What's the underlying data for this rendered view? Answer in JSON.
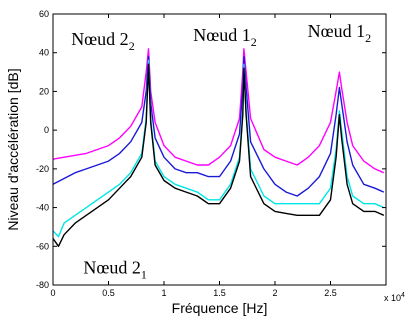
{
  "chart_data": {
    "type": "line",
    "xlabel": "Fréquence [Hz]",
    "ylabel": "Niveau d'accélération [dB]",
    "x_multiplier": "x 10",
    "x_multiplier_exp": "4",
    "xlim": [
      0,
      3
    ],
    "ylim": [
      -80,
      60
    ],
    "x_ticks": [
      "0",
      "0.5",
      "1",
      "1.5",
      "2",
      "2.5"
    ],
    "x_tick_values": [
      0,
      0.5,
      1,
      1.5,
      2,
      2.5
    ],
    "y_ticks": [
      "-80",
      "-60",
      "-40",
      "-20",
      "0",
      "20",
      "40",
      "60"
    ],
    "y_tick_values": [
      -80,
      -60,
      -40,
      -20,
      0,
      20,
      40,
      60
    ],
    "grid": false,
    "series": [
      {
        "color": "#ff00ff",
        "x": [
          0,
          0.1,
          0.2,
          0.3,
          0.4,
          0.5,
          0.6,
          0.7,
          0.8,
          0.84,
          0.86,
          0.88,
          0.92,
          1.0,
          1.1,
          1.2,
          1.3,
          1.4,
          1.5,
          1.6,
          1.68,
          1.71,
          1.72,
          1.74,
          1.78,
          1.9,
          2.0,
          2.1,
          2.2,
          2.3,
          2.4,
          2.5,
          2.55,
          2.58,
          2.6,
          2.65,
          2.7,
          2.8,
          2.9,
          2.98
        ],
        "y": [
          -15,
          -14,
          -13,
          -12,
          -10,
          -8,
          -4,
          2,
          12,
          30,
          42,
          20,
          4,
          -8,
          -14,
          -16,
          -18,
          -18,
          -14,
          -8,
          6,
          30,
          42,
          30,
          6,
          -10,
          -14,
          -16,
          -18,
          -14,
          -8,
          4,
          20,
          30,
          22,
          4,
          -8,
          -16,
          -20,
          -22
        ]
      },
      {
        "color": "#1a1ad6",
        "x": [
          0,
          0.1,
          0.2,
          0.3,
          0.4,
          0.5,
          0.6,
          0.7,
          0.8,
          0.84,
          0.86,
          0.88,
          0.92,
          1.0,
          1.1,
          1.2,
          1.3,
          1.4,
          1.5,
          1.6,
          1.68,
          1.71,
          1.72,
          1.74,
          1.78,
          1.9,
          2.0,
          2.1,
          2.2,
          2.3,
          2.4,
          2.5,
          2.55,
          2.58,
          2.6,
          2.65,
          2.7,
          2.8,
          2.9,
          2.98
        ],
        "y": [
          -28,
          -25,
          -22,
          -20,
          -18,
          -16,
          -12,
          -6,
          4,
          20,
          38,
          14,
          -4,
          -14,
          -20,
          -22,
          -22,
          -24,
          -24,
          -16,
          -2,
          22,
          38,
          22,
          -6,
          -20,
          -28,
          -32,
          -34,
          -30,
          -24,
          -12,
          8,
          22,
          14,
          -6,
          -18,
          -28,
          -30,
          -32
        ]
      },
      {
        "color": "#00e5e5",
        "x": [
          0,
          0.05,
          0.1,
          0.2,
          0.3,
          0.4,
          0.5,
          0.6,
          0.7,
          0.8,
          0.84,
          0.86,
          0.88,
          0.92,
          1.0,
          1.1,
          1.2,
          1.3,
          1.4,
          1.5,
          1.6,
          1.68,
          1.71,
          1.72,
          1.74,
          1.78,
          1.9,
          2.0,
          2.1,
          2.2,
          2.3,
          2.4,
          2.5,
          2.55,
          2.58,
          2.6,
          2.65,
          2.7,
          2.8,
          2.9,
          2.98
        ],
        "y": [
          -52,
          -55,
          -48,
          -44,
          -40,
          -36,
          -32,
          -28,
          -22,
          -12,
          6,
          36,
          6,
          -16,
          -24,
          -28,
          -30,
          -32,
          -36,
          -36,
          -28,
          -14,
          10,
          34,
          10,
          -20,
          -34,
          -38,
          -38,
          -38,
          -38,
          -38,
          -30,
          -10,
          10,
          0,
          -24,
          -34,
          -38,
          -38,
          -40
        ]
      },
      {
        "color": "#000000",
        "x": [
          0,
          0.05,
          0.1,
          0.2,
          0.3,
          0.4,
          0.5,
          0.6,
          0.7,
          0.8,
          0.84,
          0.86,
          0.88,
          0.92,
          1.0,
          1.1,
          1.2,
          1.3,
          1.4,
          1.5,
          1.6,
          1.68,
          1.71,
          1.72,
          1.74,
          1.78,
          1.9,
          2.0,
          2.1,
          2.2,
          2.3,
          2.4,
          2.5,
          2.55,
          2.58,
          2.6,
          2.65,
          2.7,
          2.8,
          2.9,
          2.98
        ],
        "y": [
          -56,
          -60,
          -54,
          -48,
          -44,
          -40,
          -36,
          -30,
          -24,
          -14,
          4,
          34,
          4,
          -18,
          -26,
          -30,
          -32,
          -34,
          -38,
          -38,
          -30,
          -16,
          8,
          32,
          8,
          -24,
          -38,
          -42,
          -43,
          -44,
          -44,
          -44,
          -36,
          -14,
          8,
          -4,
          -28,
          -38,
          -42,
          -42,
          -44
        ]
      }
    ],
    "annotations": [
      {
        "text": "Nœud 2",
        "sub": "2",
        "x": 0.45,
        "y": 44
      },
      {
        "text": "Nœud 1",
        "sub": "2",
        "x": 1.55,
        "y": 46
      },
      {
        "text": "Nœud 1",
        "sub": "2",
        "x": 2.58,
        "y": 48
      },
      {
        "text": "Nœud 2",
        "sub": "1",
        "x": 0.56,
        "y": -74
      }
    ]
  }
}
